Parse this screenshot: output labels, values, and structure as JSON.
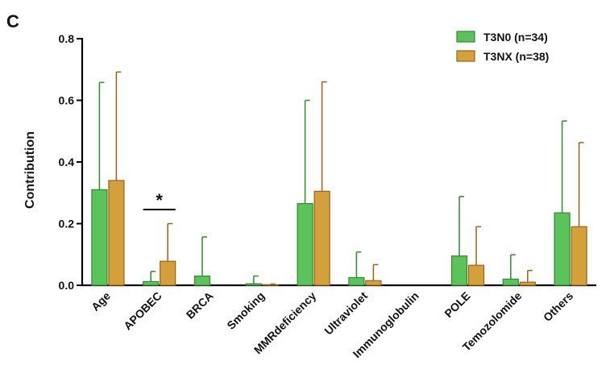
{
  "panel_label": "C",
  "chart_data": {
    "type": "bar",
    "title": "",
    "xlabel": "",
    "ylabel": "Contribution",
    "ylim": [
      0,
      0.8
    ],
    "yticks": [
      "0.0",
      "0.2",
      "0.4",
      "0.6",
      "0.8"
    ],
    "ytick_values": [
      0,
      0.2,
      0.4,
      0.6,
      0.8
    ],
    "categories": [
      "Age",
      "APOBEC",
      "BRCA",
      "Smoking",
      "MMRdeficiency",
      "Ultraviolet",
      "Immunoglobulin",
      "POLE",
      "Temozolomide",
      "Others"
    ],
    "series": [
      {
        "name": "T3N0 (n=34)",
        "color": "#5cc25a",
        "edge": "#2e8b2e",
        "values": [
          0.31,
          0.012,
          0.03,
          0.005,
          0.265,
          0.025,
          0,
          0.095,
          0.02,
          0.235
        ],
        "errors": [
          0.348,
          0.033,
          0.127,
          0.025,
          0.335,
          0.083,
          0,
          0.193,
          0.079,
          0.298
        ]
      },
      {
        "name": "T3NX (n=38)",
        "color": "#d4a03c",
        "edge": "#9a6218",
        "values": [
          0.34,
          0.078,
          0,
          0.002,
          0.305,
          0.015,
          0,
          0.065,
          0.01,
          0.19
        ],
        "errors": [
          0.352,
          0.122,
          0,
          0.002,
          0.355,
          0.052,
          0,
          0.125,
          0.038,
          0.273
        ]
      }
    ],
    "annotations": [
      {
        "text": "*",
        "category": "APOBEC",
        "note": "significant difference"
      }
    ],
    "legend_position": "top-right"
  }
}
